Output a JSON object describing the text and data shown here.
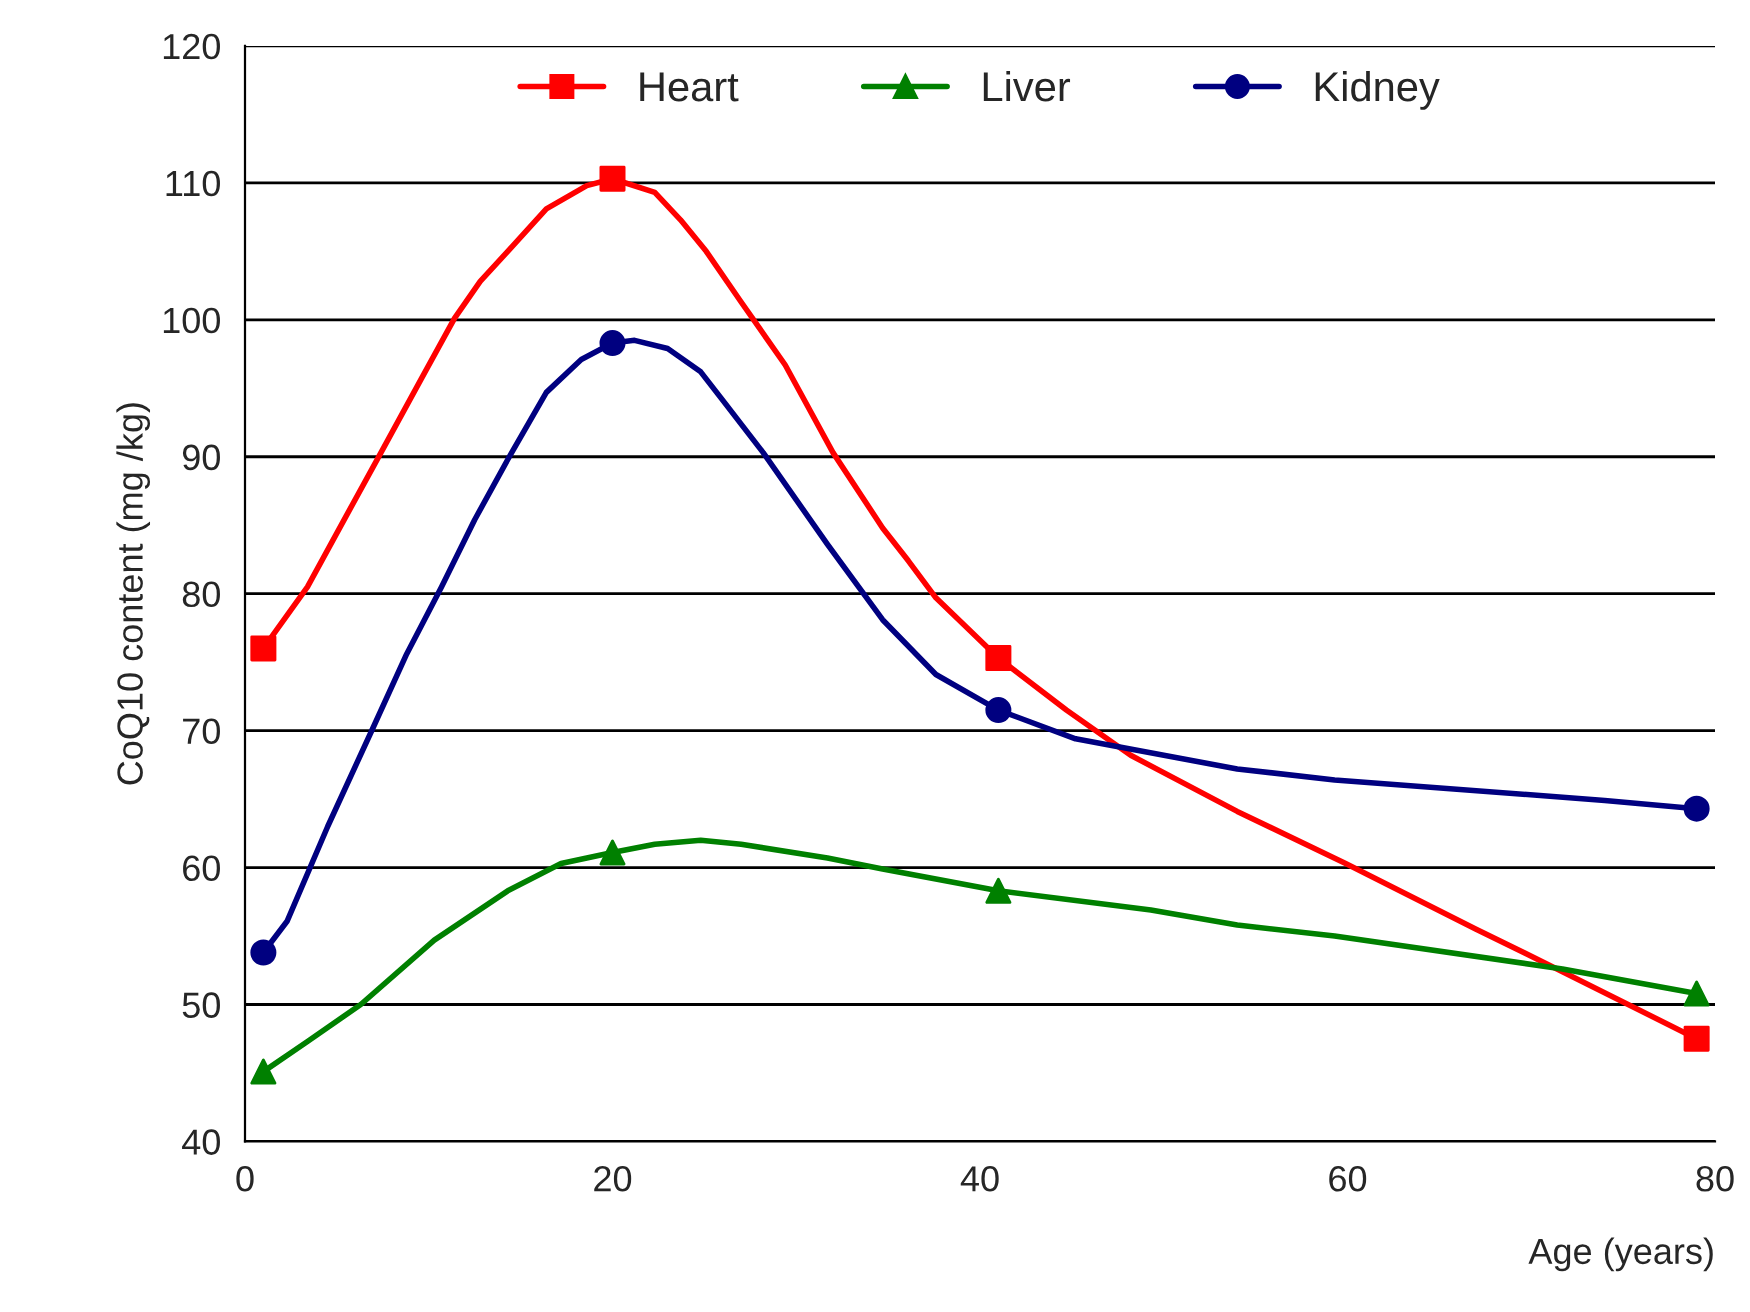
{
  "chart_data": {
    "type": "line",
    "xlabel": "Age (years)",
    "ylabel": "CoQ10 content (mg /kg)",
    "series": [
      {
        "name": "Heart",
        "color": "#ff0000",
        "x": [
          1,
          3.4,
          5.6,
          7.4,
          9.6,
          11.4,
          12.8,
          14.3,
          16.4,
          18.6,
          20,
          22.3,
          23.7,
          25.1,
          27,
          29.4,
          32,
          34.7,
          36.1,
          37.6,
          41,
          44.7,
          48.2,
          54,
          59.9,
          67,
          71.7,
          79
        ],
        "values": [
          76,
          80.5,
          85.9,
          90.3,
          95.7,
          100.1,
          102.8,
          105,
          108.1,
          109.8,
          110.3,
          109.3,
          107.3,
          105,
          101.3,
          96.7,
          90.3,
          84.8,
          82.4,
          79.7,
          75.3,
          71.5,
          68.2,
          64.1,
          60.3,
          55.5,
          52.4,
          47.5
        ]
      },
      {
        "name": "Liver",
        "color": "#008000",
        "x": [
          1,
          3.4,
          6.3,
          10.3,
          14.3,
          17.2,
          20,
          22.3,
          24.8,
          27,
          31.7,
          34.7,
          41,
          49.3,
          54,
          59.3,
          71.7,
          79
        ],
        "values": [
          45.1,
          47.3,
          50,
          54.7,
          58.3,
          60.3,
          61.1,
          61.7,
          62,
          61.7,
          60.7,
          59.9,
          58.3,
          56.9,
          55.8,
          55,
          52.6,
          50.8
        ]
      },
      {
        "name": "Kidney",
        "color": "#000080",
        "x": [
          1,
          2.3,
          4.5,
          7,
          8.8,
          10.7,
          12.5,
          14.3,
          16.4,
          18.3,
          20,
          21.2,
          23,
          24.8,
          25.9,
          28.2,
          31.7,
          34.7,
          37.6,
          41,
          45.2,
          54,
          59.3,
          74,
          79
        ],
        "values": [
          53.8,
          56.1,
          63,
          70.3,
          75.6,
          80.5,
          85.4,
          89.8,
          94.7,
          97.1,
          98.3,
          98.5,
          97.9,
          96.2,
          94.3,
          90.3,
          83.6,
          78.1,
          74.1,
          71.5,
          69.4,
          67.2,
          66.4,
          64.9,
          64.3
        ]
      },
      {
        "type": "scatter",
        "color": "#ff0000",
        "marker": "square",
        "x": [
          1,
          20,
          41,
          79
        ],
        "values": [
          76,
          110.3,
          75.3,
          47.5
        ]
      },
      {
        "type": "scatter",
        "color": "#008000",
        "marker": "triangle",
        "x": [
          1,
          20,
          41,
          79
        ],
        "values": [
          45.1,
          61.1,
          58.3,
          50.8
        ]
      },
      {
        "type": "scatter",
        "color": "#000080",
        "marker": "circle",
        "x": [
          1,
          20,
          41,
          79
        ],
        "values": [
          53.8,
          98.3,
          71.5,
          64.3
        ]
      }
    ],
    "xlim": [
      0,
      80
    ],
    "xticks": [
      0,
      20,
      40,
      60,
      80
    ],
    "ylim": [
      40,
      120
    ],
    "yticks": [
      40,
      50,
      60,
      70,
      80,
      90,
      100,
      110,
      120
    ],
    "grid": "y",
    "legend": "top",
    "line_style": "solid"
  }
}
